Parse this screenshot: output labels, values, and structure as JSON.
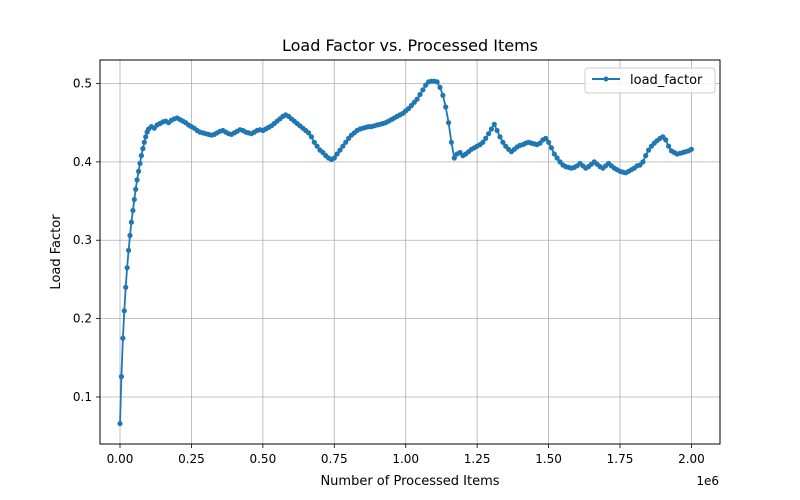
{
  "chart_data": {
    "type": "line",
    "title": "Load Factor vs. Processed Items",
    "xlabel": "Number of Processed Items",
    "ylabel": "Load Factor",
    "x_offset_label": "1e6",
    "xlim": [
      -70000,
      2100000
    ],
    "ylim": [
      0.04,
      0.53
    ],
    "x_ticks": [
      0,
      250000,
      500000,
      750000,
      1000000,
      1250000,
      1500000,
      1750000,
      2000000
    ],
    "x_tick_labels": [
      "0.00",
      "0.25",
      "0.50",
      "0.75",
      "1.00",
      "1.25",
      "1.50",
      "1.75",
      "2.00"
    ],
    "y_ticks": [
      0.1,
      0.2,
      0.3,
      0.4,
      0.5
    ],
    "y_tick_labels": [
      "0.1",
      "0.2",
      "0.3",
      "0.4",
      "0.5"
    ],
    "grid": true,
    "legend_position": "top-right",
    "series": [
      {
        "name": "load_factor",
        "color": "#1f77b4",
        "marker": "circle",
        "x": [
          0,
          5000,
          10000,
          15000,
          20000,
          25000,
          30000,
          35000,
          40000,
          45000,
          50000,
          55000,
          60000,
          65000,
          70000,
          75000,
          80000,
          85000,
          90000,
          95000,
          100000,
          110000,
          120000,
          130000,
          140000,
          150000,
          160000,
          170000,
          180000,
          190000,
          200000,
          210000,
          220000,
          230000,
          240000,
          250000,
          260000,
          270000,
          280000,
          290000,
          300000,
          310000,
          320000,
          330000,
          340000,
          350000,
          360000,
          370000,
          380000,
          390000,
          400000,
          410000,
          420000,
          430000,
          440000,
          450000,
          460000,
          470000,
          480000,
          490000,
          500000,
          510000,
          520000,
          530000,
          540000,
          550000,
          560000,
          570000,
          580000,
          590000,
          600000,
          610000,
          620000,
          630000,
          640000,
          650000,
          660000,
          670000,
          680000,
          690000,
          700000,
          710000,
          720000,
          730000,
          740000,
          750000,
          760000,
          770000,
          780000,
          790000,
          800000,
          810000,
          820000,
          830000,
          840000,
          850000,
          860000,
          870000,
          880000,
          890000,
          900000,
          910000,
          920000,
          930000,
          940000,
          950000,
          960000,
          970000,
          980000,
          990000,
          1000000,
          1010000,
          1020000,
          1030000,
          1040000,
          1050000,
          1060000,
          1070000,
          1080000,
          1090000,
          1100000,
          1110000,
          1120000,
          1130000,
          1140000,
          1150000,
          1160000,
          1170000,
          1180000,
          1190000,
          1200000,
          1210000,
          1220000,
          1230000,
          1240000,
          1250000,
          1260000,
          1270000,
          1280000,
          1290000,
          1300000,
          1310000,
          1320000,
          1330000,
          1340000,
          1350000,
          1360000,
          1370000,
          1380000,
          1390000,
          1400000,
          1410000,
          1420000,
          1430000,
          1440000,
          1450000,
          1460000,
          1470000,
          1480000,
          1490000,
          1500000,
          1510000,
          1520000,
          1530000,
          1540000,
          1550000,
          1560000,
          1570000,
          1580000,
          1590000,
          1600000,
          1610000,
          1620000,
          1630000,
          1640000,
          1650000,
          1660000,
          1670000,
          1680000,
          1690000,
          1700000,
          1710000,
          1720000,
          1730000,
          1740000,
          1750000,
          1760000,
          1770000,
          1780000,
          1790000,
          1800000,
          1810000,
          1820000,
          1830000,
          1840000,
          1850000,
          1860000,
          1870000,
          1880000,
          1890000,
          1900000,
          1910000,
          1920000,
          1930000,
          1940000,
          1950000,
          1960000,
          1970000,
          1980000,
          1990000,
          2000000
        ],
        "y": [
          0.066,
          0.126,
          0.175,
          0.21,
          0.24,
          0.265,
          0.287,
          0.306,
          0.323,
          0.338,
          0.352,
          0.365,
          0.377,
          0.388,
          0.398,
          0.408,
          0.417,
          0.425,
          0.432,
          0.438,
          0.442,
          0.445,
          0.443,
          0.447,
          0.449,
          0.451,
          0.452,
          0.45,
          0.453,
          0.455,
          0.456,
          0.454,
          0.452,
          0.45,
          0.447,
          0.445,
          0.443,
          0.44,
          0.438,
          0.437,
          0.436,
          0.435,
          0.434,
          0.435,
          0.437,
          0.439,
          0.44,
          0.438,
          0.436,
          0.435,
          0.437,
          0.439,
          0.441,
          0.44,
          0.438,
          0.437,
          0.436,
          0.438,
          0.44,
          0.441,
          0.44,
          0.442,
          0.444,
          0.446,
          0.449,
          0.452,
          0.455,
          0.458,
          0.46,
          0.458,
          0.455,
          0.452,
          0.449,
          0.446,
          0.443,
          0.44,
          0.437,
          0.432,
          0.425,
          0.42,
          0.415,
          0.412,
          0.408,
          0.405,
          0.403,
          0.405,
          0.41,
          0.415,
          0.42,
          0.425,
          0.43,
          0.434,
          0.437,
          0.44,
          0.442,
          0.443,
          0.444,
          0.445,
          0.445,
          0.446,
          0.447,
          0.448,
          0.449,
          0.45,
          0.452,
          0.454,
          0.456,
          0.458,
          0.46,
          0.462,
          0.465,
          0.468,
          0.472,
          0.476,
          0.48,
          0.486,
          0.492,
          0.498,
          0.502,
          0.503,
          0.503,
          0.502,
          0.495,
          0.485,
          0.47,
          0.45,
          0.425,
          0.405,
          0.41,
          0.412,
          0.408,
          0.41,
          0.413,
          0.416,
          0.418,
          0.42,
          0.422,
          0.425,
          0.43,
          0.436,
          0.442,
          0.448,
          0.44,
          0.432,
          0.425,
          0.42,
          0.416,
          0.413,
          0.416,
          0.419,
          0.421,
          0.422,
          0.424,
          0.425,
          0.424,
          0.423,
          0.422,
          0.424,
          0.428,
          0.43,
          0.425,
          0.418,
          0.41,
          0.405,
          0.4,
          0.396,
          0.394,
          0.393,
          0.392,
          0.393,
          0.395,
          0.398,
          0.395,
          0.392,
          0.394,
          0.397,
          0.4,
          0.397,
          0.394,
          0.392,
          0.395,
          0.398,
          0.395,
          0.392,
          0.39,
          0.388,
          0.387,
          0.386,
          0.388,
          0.39,
          0.392,
          0.395,
          0.396,
          0.4,
          0.408,
          0.415,
          0.42,
          0.424,
          0.427,
          0.43,
          0.432,
          0.428,
          0.42,
          0.414,
          0.412,
          0.41,
          0.411,
          0.412,
          0.413,
          0.414,
          0.416
        ]
      }
    ]
  }
}
